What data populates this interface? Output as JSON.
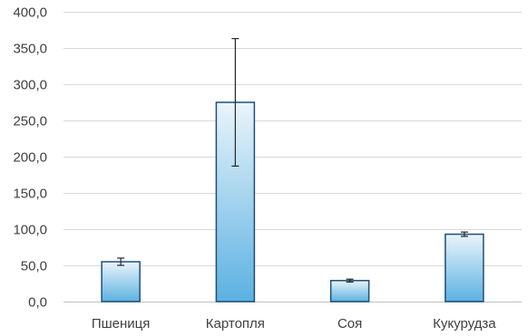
{
  "chart_data": {
    "type": "bar",
    "title": "",
    "xlabel": "",
    "ylabel": "",
    "categories": [
      "Пшениця",
      "Картопля",
      "Соя",
      "Кукурудза"
    ],
    "values": [
      55,
      275,
      29,
      93
    ],
    "error": [
      5,
      88,
      2,
      3
    ],
    "ylim": [
      0,
      400
    ],
    "yticks": [
      0,
      50,
      100,
      150,
      200,
      250,
      300,
      350,
      400
    ],
    "ytick_labels": [
      "0,0",
      "50,0",
      "100,0",
      "150,0",
      "200,0",
      "250,0",
      "300,0",
      "350,0",
      "400,0"
    ],
    "grid": true,
    "legend": "none",
    "colors": {
      "bar_fill_top": "#eaf4fb",
      "bar_fill_bottom": "#5bb1e1",
      "bar_stroke": "#1f4e79",
      "grid": "#d9d9d9",
      "text": "#404040",
      "error_bar": "#262626"
    }
  }
}
